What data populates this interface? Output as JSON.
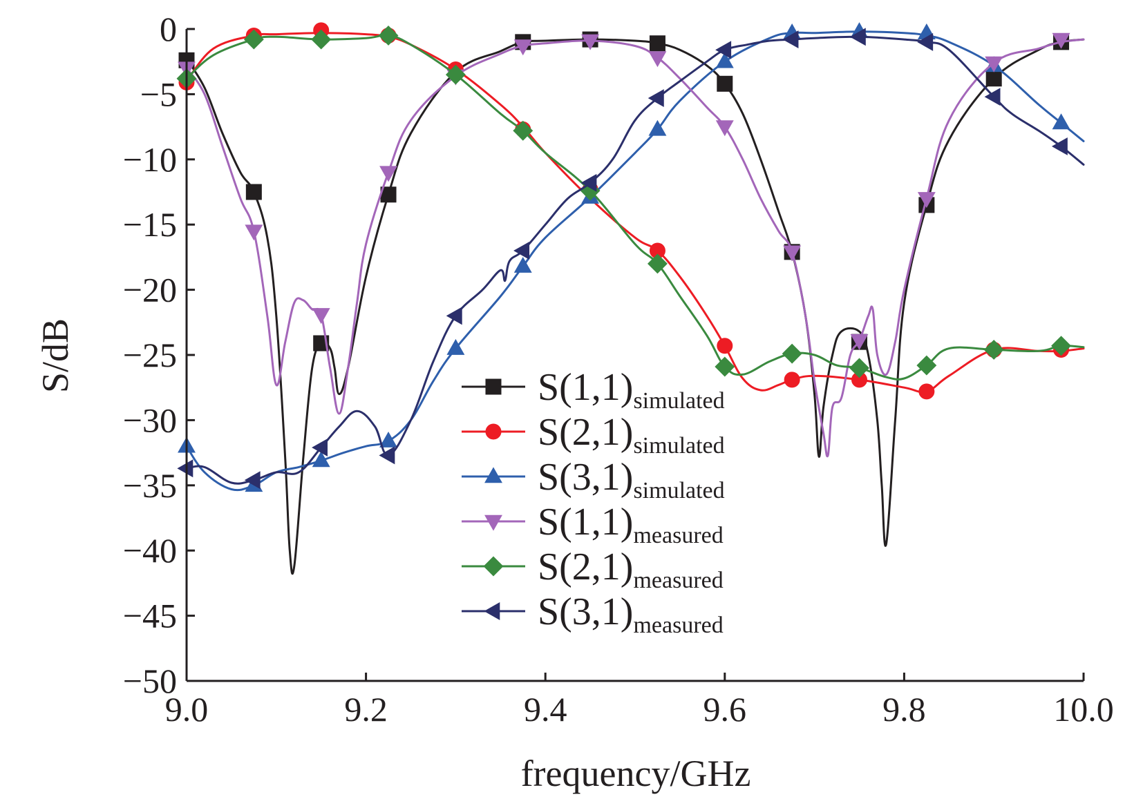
{
  "chart_data": {
    "type": "line",
    "xlabel": "frequency/GHz",
    "ylabel": "S/dB",
    "xlim": [
      9.0,
      10.0
    ],
    "ylim": [
      -50,
      0
    ],
    "x_ticks": [
      "9.0",
      "9.2",
      "9.4",
      "9.6",
      "9.8",
      "10.0"
    ],
    "x_tick_values": [
      9.0,
      9.2,
      9.4,
      9.6,
      9.8,
      10.0
    ],
    "y_ticks": [
      "0",
      "−5",
      "−10",
      "−15",
      "−20",
      "−25",
      "−30",
      "−35",
      "−40",
      "−45",
      "−50"
    ],
    "y_tick_values": [
      0,
      -5,
      -10,
      -15,
      -20,
      -25,
      -30,
      -35,
      -40,
      -45,
      -50
    ],
    "grid": false,
    "legend_position": "center-right",
    "series": [
      {
        "name": "S(1,1)simulated",
        "legend_main": "S(1,1)",
        "legend_sub": "simulated",
        "color": "#231f20",
        "marker": "square",
        "x": [
          9.0,
          9.02,
          9.04,
          9.06,
          9.075,
          9.09,
          9.1,
          9.11,
          9.115,
          9.12,
          9.13,
          9.14,
          9.15,
          9.16,
          9.165,
          9.17,
          9.18,
          9.2,
          9.225,
          9.25,
          9.3,
          9.35,
          9.375,
          9.4,
          9.45,
          9.5,
          9.525,
          9.55,
          9.58,
          9.6,
          9.62,
          9.64,
          9.66,
          9.675,
          9.69,
          9.7,
          9.705,
          9.71,
          9.72,
          9.73,
          9.75,
          9.76,
          9.77,
          9.775,
          9.78,
          9.79,
          9.8,
          9.825,
          9.85,
          9.9,
          9.95,
          9.975,
          10.0
        ],
        "y": [
          -2.3,
          -4.5,
          -8.0,
          -11.0,
          -12.5,
          -16.0,
          -22.0,
          -33.0,
          -40.0,
          -41.2,
          -33.0,
          -26.0,
          -24.1,
          -24.5,
          -26.0,
          -28.0,
          -26.0,
          -19.0,
          -12.7,
          -8.0,
          -3.3,
          -1.7,
          -1.0,
          -0.9,
          -0.8,
          -0.9,
          -1.1,
          -1.6,
          -2.8,
          -4.2,
          -6.5,
          -10.0,
          -14.0,
          -17.1,
          -22.0,
          -28.0,
          -32.8,
          -29.0,
          -25.0,
          -23.2,
          -23.2,
          -25.0,
          -30.0,
          -35.0,
          -39.5,
          -30.0,
          -21.0,
          -13.5,
          -8.5,
          -3.8,
          -1.6,
          -1.0,
          -0.8
        ],
        "marker_x": [
          9.0,
          9.075,
          9.15,
          9.225,
          9.375,
          9.45,
          9.525,
          9.6,
          9.675,
          9.75,
          9.825,
          9.9,
          9.975
        ],
        "marker_y": [
          -2.4,
          -12.5,
          -24.1,
          -12.7,
          -1.0,
          -0.8,
          -1.1,
          -4.2,
          -17.1,
          -24.0,
          -13.5,
          -3.8,
          -1.0
        ]
      },
      {
        "name": "S(2,1)simulated",
        "legend_main": "S(2,1)",
        "legend_sub": "simulated",
        "color": "#ed1c24",
        "marker": "circle",
        "x": [
          9.0,
          9.03,
          9.075,
          9.1,
          9.15,
          9.2,
          9.225,
          9.25,
          9.3,
          9.35,
          9.375,
          9.4,
          9.45,
          9.5,
          9.525,
          9.55,
          9.58,
          9.6,
          9.62,
          9.64,
          9.66,
          9.675,
          9.7,
          9.75,
          9.8,
          9.825,
          9.85,
          9.9,
          9.95,
          9.975,
          10.0
        ],
        "y": [
          -4.0,
          -1.5,
          -0.5,
          -0.4,
          -0.3,
          -0.4,
          -0.6,
          -1.2,
          -3.1,
          -5.8,
          -7.5,
          -9.5,
          -13.0,
          -16.0,
          -17.0,
          -19.0,
          -22.0,
          -24.3,
          -26.8,
          -27.7,
          -27.3,
          -26.9,
          -26.6,
          -26.9,
          -27.5,
          -27.8,
          -26.6,
          -24.6,
          -24.7,
          -24.7,
          -24.5
        ],
        "marker_x": [
          9.0,
          9.075,
          9.15,
          9.225,
          9.3,
          9.375,
          9.45,
          9.525,
          9.6,
          9.675,
          9.75,
          9.825,
          9.9,
          9.975
        ],
        "marker_y": [
          -4.1,
          -0.5,
          -0.1,
          -0.5,
          -3.1,
          -7.7,
          -12.3,
          -17.0,
          -24.3,
          -26.9,
          -26.9,
          -27.8,
          -24.6,
          -24.6
        ]
      },
      {
        "name": "S(3,1)simulated",
        "legend_main": "S(3,1)",
        "legend_sub": "simulated",
        "color": "#2e5fac",
        "marker": "triangle-up",
        "x": [
          9.0,
          9.02,
          9.05,
          9.075,
          9.1,
          9.125,
          9.15,
          9.175,
          9.2,
          9.225,
          9.25,
          9.275,
          9.3,
          9.35,
          9.375,
          9.4,
          9.45,
          9.5,
          9.525,
          9.55,
          9.6,
          9.65,
          9.675,
          9.7,
          9.75,
          9.8,
          9.825,
          9.85,
          9.9,
          9.95,
          9.975,
          10.0
        ],
        "y": [
          -32.0,
          -34.0,
          -35.3,
          -35.0,
          -34.0,
          -33.6,
          -33.1,
          -32.5,
          -32.0,
          -31.6,
          -30.0,
          -27.0,
          -24.5,
          -20.5,
          -18.2,
          -16.0,
          -12.9,
          -9.5,
          -7.7,
          -5.5,
          -2.5,
          -0.7,
          -0.3,
          -0.3,
          -0.2,
          -0.3,
          -0.5,
          -1.0,
          -2.8,
          -5.8,
          -7.2,
          -8.6
        ],
        "marker_x": [
          9.0,
          9.075,
          9.15,
          9.225,
          9.3,
          9.375,
          9.45,
          9.525,
          9.6,
          9.675,
          9.75,
          9.825,
          9.9,
          9.975
        ],
        "marker_y": [
          -32.0,
          -35.0,
          -33.1,
          -31.6,
          -24.5,
          -18.2,
          -12.9,
          -7.7,
          -2.5,
          -0.3,
          -0.2,
          -0.3,
          -2.8,
          -7.2
        ]
      },
      {
        "name": "S(1,1)measured",
        "legend_main": "S(1,1)",
        "legend_sub": "measured",
        "color": "#a366b9",
        "marker": "triangle-down",
        "x": [
          9.0,
          9.02,
          9.04,
          9.06,
          9.075,
          9.09,
          9.1,
          9.11,
          9.12,
          9.13,
          9.14,
          9.15,
          9.16,
          9.17,
          9.18,
          9.19,
          9.2,
          9.225,
          9.25,
          9.3,
          9.35,
          9.375,
          9.4,
          9.45,
          9.5,
          9.525,
          9.55,
          9.58,
          9.6,
          9.62,
          9.64,
          9.66,
          9.675,
          9.69,
          9.7,
          9.71,
          9.715,
          9.72,
          9.73,
          9.74,
          9.75,
          9.76,
          9.765,
          9.77,
          9.78,
          9.79,
          9.8,
          9.825,
          9.85,
          9.9,
          9.95,
          9.975,
          10.0
        ],
        "y": [
          -3.0,
          -5.0,
          -9.0,
          -13.0,
          -15.5,
          -22.0,
          -27.3,
          -24.0,
          -21.0,
          -20.8,
          -21.5,
          -21.9,
          -26.0,
          -29.5,
          -26.0,
          -21.0,
          -16.5,
          -11.0,
          -7.0,
          -3.6,
          -1.9,
          -1.3,
          -1.1,
          -0.9,
          -1.3,
          -2.2,
          -3.8,
          -6.0,
          -7.5,
          -10.0,
          -13.0,
          -15.5,
          -17.1,
          -22.0,
          -27.0,
          -31.0,
          -32.7,
          -29.0,
          -28.3,
          -25.0,
          -23.9,
          -22.0,
          -21.5,
          -25.0,
          -26.5,
          -24.0,
          -20.0,
          -13.0,
          -7.0,
          -2.6,
          -1.5,
          -1.0,
          -0.8
        ],
        "marker_x": [
          9.0,
          9.075,
          9.15,
          9.225,
          9.3,
          9.375,
          9.45,
          9.525,
          9.6,
          9.675,
          9.75,
          9.825,
          9.9,
          9.975
        ],
        "marker_y": [
          -3.0,
          -15.5,
          -21.9,
          -11.0,
          -3.6,
          -1.3,
          -0.9,
          -2.2,
          -7.5,
          -17.1,
          -23.9,
          -13.0,
          -2.6,
          -0.8
        ]
      },
      {
        "name": "S(2,1)measured",
        "legend_main": "S(2,1)",
        "legend_sub": "measured",
        "color": "#3a8a3f",
        "marker": "diamond",
        "x": [
          9.0,
          9.03,
          9.075,
          9.1,
          9.15,
          9.2,
          9.225,
          9.25,
          9.3,
          9.35,
          9.375,
          9.4,
          9.45,
          9.5,
          9.525,
          9.55,
          9.58,
          9.6,
          9.62,
          9.65,
          9.675,
          9.7,
          9.725,
          9.75,
          9.78,
          9.8,
          9.825,
          9.85,
          9.9,
          9.95,
          9.975,
          10.0
        ],
        "y": [
          -3.8,
          -2.0,
          -0.8,
          -0.6,
          -0.8,
          -0.7,
          -0.5,
          -1.2,
          -3.5,
          -6.5,
          -7.8,
          -9.5,
          -12.4,
          -16.5,
          -18.0,
          -20.5,
          -23.5,
          -25.9,
          -26.5,
          -25.5,
          -24.9,
          -25.0,
          -25.8,
          -26.0,
          -26.7,
          -26.8,
          -25.8,
          -24.5,
          -24.6,
          -24.7,
          -24.3,
          -24.4
        ],
        "marker_x": [
          9.0,
          9.075,
          9.15,
          9.225,
          9.3,
          9.375,
          9.45,
          9.525,
          9.6,
          9.675,
          9.75,
          9.825,
          9.9,
          9.975
        ],
        "marker_y": [
          -3.8,
          -0.8,
          -0.8,
          -0.5,
          -3.5,
          -7.8,
          -12.4,
          -18.0,
          -25.9,
          -24.9,
          -26.0,
          -25.8,
          -24.6,
          -24.3
        ]
      },
      {
        "name": "S(3,1)measured",
        "legend_main": "S(3,1)",
        "legend_sub": "measured",
        "color": "#2b2f6b",
        "marker": "triangle-left",
        "x": [
          9.0,
          9.02,
          9.05,
          9.075,
          9.1,
          9.125,
          9.15,
          9.17,
          9.19,
          9.21,
          9.225,
          9.25,
          9.275,
          9.3,
          9.33,
          9.35,
          9.355,
          9.36,
          9.375,
          9.4,
          9.425,
          9.45,
          9.475,
          9.5,
          9.525,
          9.55,
          9.58,
          9.6,
          9.625,
          9.65,
          9.675,
          9.7,
          9.75,
          9.8,
          9.825,
          9.85,
          9.9,
          9.92,
          9.95,
          9.975,
          10.0
        ],
        "y": [
          -33.7,
          -33.6,
          -34.8,
          -34.6,
          -34.0,
          -34.0,
          -32.1,
          -30.5,
          -29.3,
          -30.5,
          -32.7,
          -30.0,
          -25.5,
          -22.0,
          -20.0,
          -18.5,
          -19.3,
          -17.8,
          -17.0,
          -15.0,
          -13.0,
          -11.8,
          -10.0,
          -7.0,
          -5.3,
          -4.0,
          -2.5,
          -1.6,
          -1.2,
          -0.9,
          -0.8,
          -0.7,
          -0.6,
          -0.8,
          -1.0,
          -1.6,
          -5.2,
          -6.5,
          -7.8,
          -9.0,
          -10.4
        ],
        "marker_x": [
          9.0,
          9.075,
          9.15,
          9.225,
          9.3,
          9.375,
          9.45,
          9.525,
          9.6,
          9.675,
          9.75,
          9.825,
          9.9,
          9.975
        ],
        "marker_y": [
          -33.7,
          -34.6,
          -32.1,
          -32.7,
          -22.0,
          -17.0,
          -11.8,
          -5.3,
          -1.6,
          -0.8,
          -0.6,
          -1.0,
          -5.2,
          -9.0
        ]
      }
    ]
  }
}
